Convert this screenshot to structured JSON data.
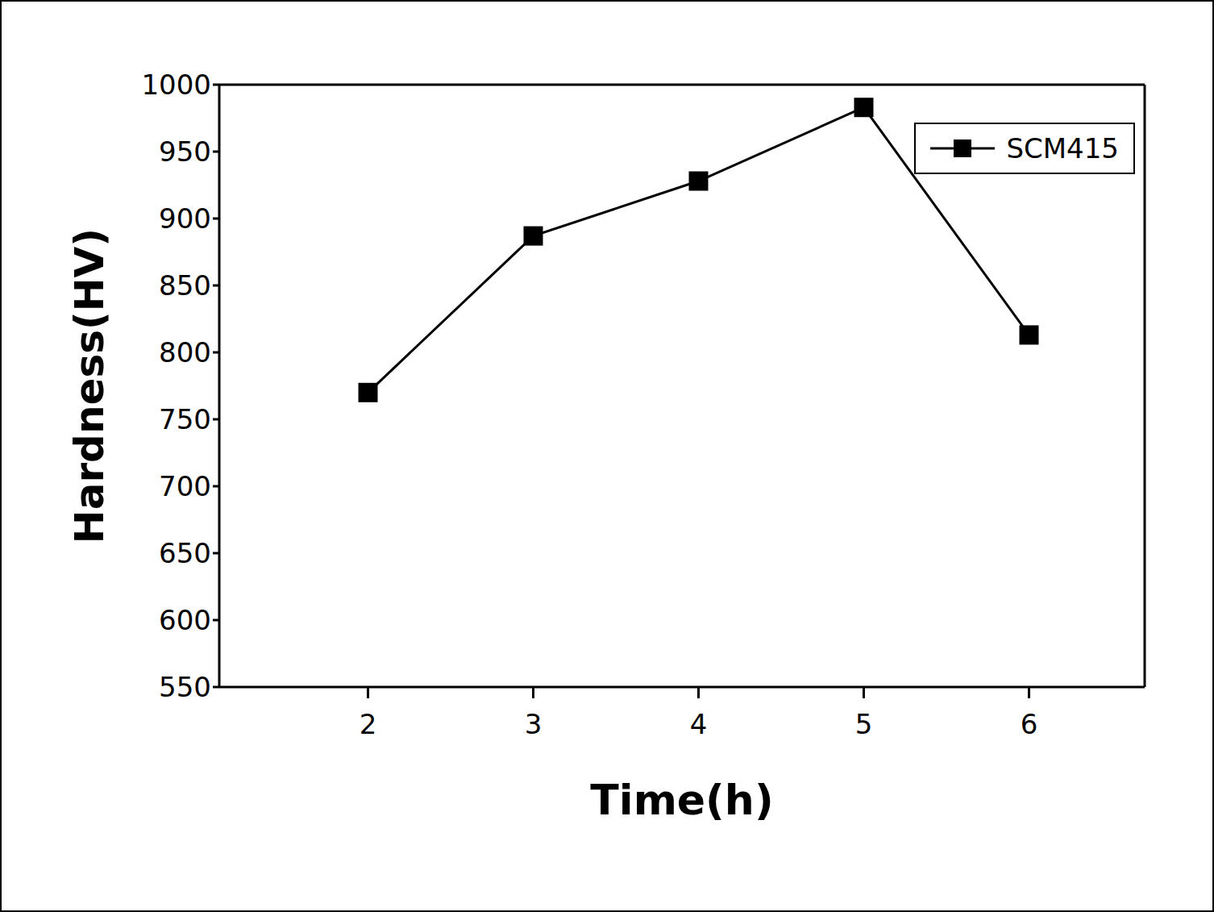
{
  "chart_data": {
    "type": "line",
    "x_label": "Time(h)",
    "y_label": "Hardness(HV)",
    "x": [
      2,
      3,
      4,
      5,
      6
    ],
    "series": [
      {
        "name": "SCM415",
        "color": "#000000",
        "marker": "square",
        "line_style": "solid",
        "values": [
          770,
          887,
          928,
          983,
          813
        ]
      }
    ],
    "xlim": [
      1.1,
      6.7
    ],
    "xticks": [
      2,
      3,
      4,
      5,
      6
    ],
    "ylim": [
      550,
      1000
    ],
    "yticks": [
      550,
      600,
      650,
      700,
      750,
      800,
      850,
      900,
      950,
      1000
    ],
    "grid": false,
    "legend": "upper right"
  }
}
